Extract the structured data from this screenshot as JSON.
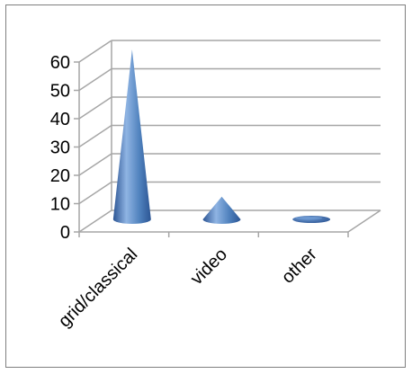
{
  "chart_data": {
    "type": "bar",
    "bar_shape": "cone",
    "projection": "3d",
    "categories": [
      "grid/classical",
      "video",
      "other"
    ],
    "values": [
      60,
      8,
      1
    ],
    "ylim": [
      0,
      60
    ],
    "yticks": [
      0,
      10,
      20,
      30,
      40,
      50,
      60
    ],
    "ytick_labels": [
      "0",
      "10",
      "20",
      "30",
      "40",
      "50",
      "60"
    ],
    "grid": true,
    "legend": "none",
    "colors": {
      "bar_light": "#8fb4e3",
      "bar_mid": "#4f81bd",
      "bar_dark": "#2c5594",
      "grid": "#a6a6a6",
      "frame": "#7f7f7f"
    }
  }
}
